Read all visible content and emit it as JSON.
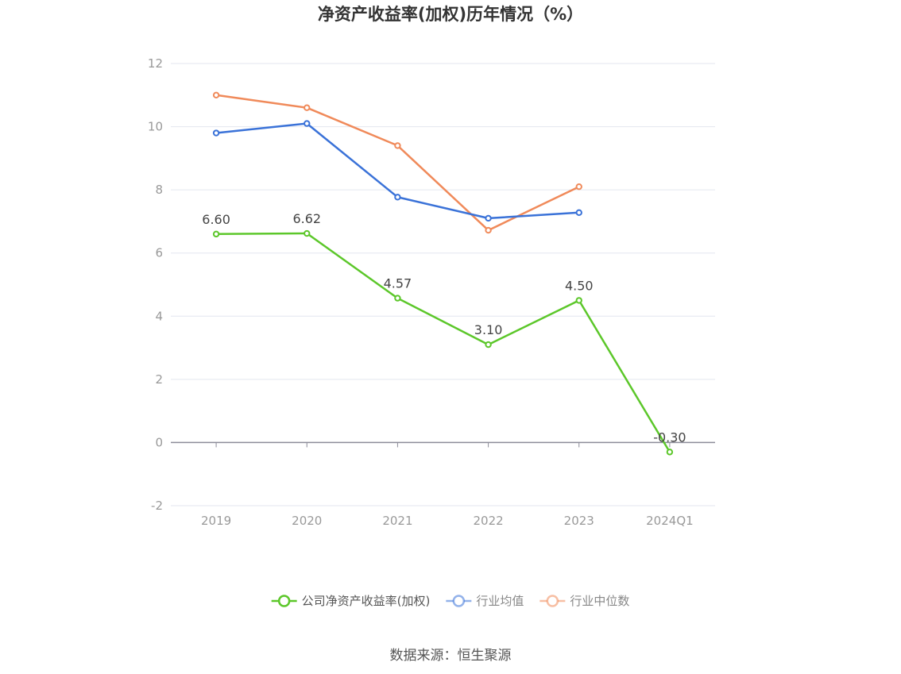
{
  "chart_data": {
    "type": "line",
    "title": "净资产收益率(加权)历年情况（%）",
    "categories": [
      "2019",
      "2020",
      "2021",
      "2022",
      "2023",
      "2024Q1"
    ],
    "ylim": [
      -2,
      12
    ],
    "yticks": [
      -2,
      0,
      2,
      4,
      6,
      8,
      10,
      12
    ],
    "grid": true,
    "legend_position": "bottom",
    "series": [
      {
        "name": "公司净资产收益率(加权)",
        "color": "#5cc72a",
        "values": [
          6.6,
          6.62,
          4.57,
          3.1,
          4.5,
          -0.3
        ],
        "labels": [
          "6.60",
          "6.62",
          "4.57",
          "3.10",
          "4.50",
          "-0.30"
        ]
      },
      {
        "name": "行业均值",
        "color": "#3a72d8",
        "values": [
          9.8,
          10.1,
          7.77,
          7.1,
          7.28,
          null
        ]
      },
      {
        "name": "行业中位数",
        "color": "#f08a5a",
        "values": [
          11.0,
          10.6,
          9.4,
          6.72,
          8.1,
          null
        ]
      }
    ]
  },
  "source": "数据来源：恒生聚源"
}
